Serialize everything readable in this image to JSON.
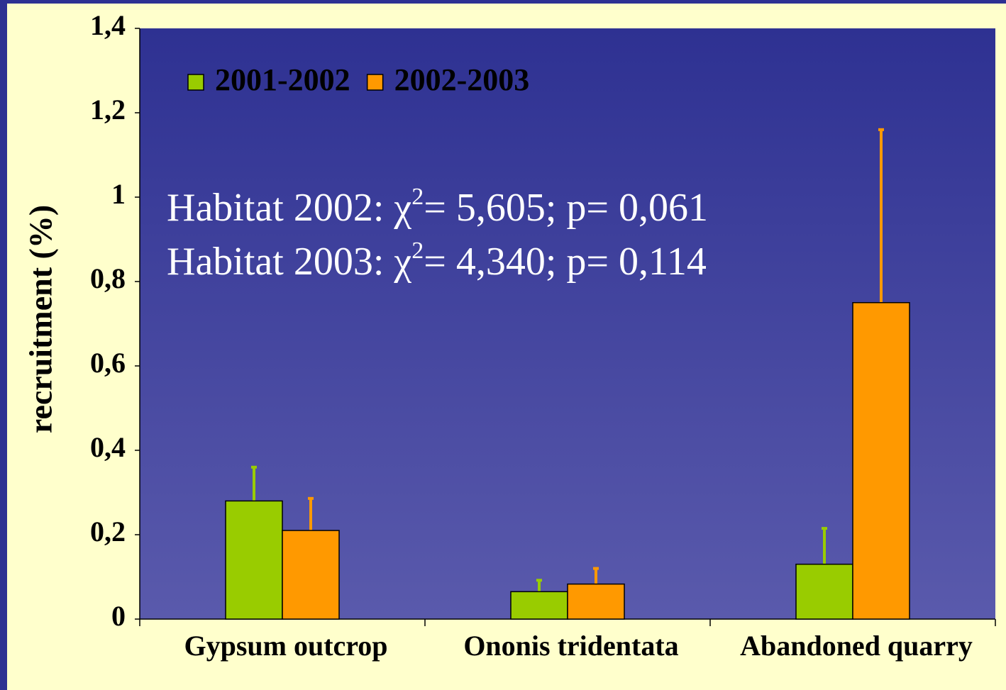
{
  "chart_data": {
    "type": "bar",
    "y_label": "recruitment (%)",
    "categories": [
      "Gypsum outcrop",
      "Ononis tridentata",
      "Abandoned quarry"
    ],
    "series": [
      {
        "name": "2001-2002",
        "color": "#99cc00",
        "values": [
          0.28,
          0.065,
          0.13
        ],
        "errors": [
          0.08,
          0.027,
          0.085
        ]
      },
      {
        "name": "2002-2003",
        "color": "#ff9900",
        "values": [
          0.21,
          0.083,
          0.75
        ],
        "errors": [
          0.076,
          0.037,
          0.41
        ]
      }
    ],
    "ylim": [
      0,
      1.4
    ],
    "yticks": [
      0,
      {
        "value": 0.2,
        "label": "0,2"
      },
      {
        "value": 0.4,
        "label": "0,4"
      },
      {
        "value": 0.6,
        "label": "0,6"
      },
      {
        "value": 0.8,
        "label": "0,8"
      },
      1,
      {
        "value": 1.2,
        "label": "1,2"
      },
      {
        "value": 1.4,
        "label": "1,4"
      }
    ],
    "legend": "upper left",
    "annotations": [
      {
        "prefix": "Habitat 2002: χ",
        "sup": "2",
        "suffix": "= 5,605; p= 0,061"
      },
      {
        "prefix": "Habitat 2003: χ",
        "sup": "2",
        "suffix": "= 4,340; p= 0,114"
      }
    ]
  }
}
